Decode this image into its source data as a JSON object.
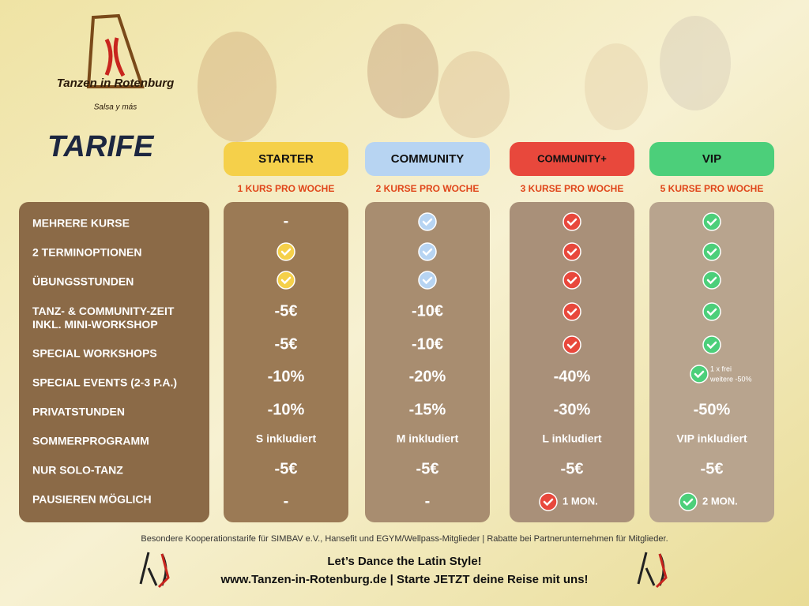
{
  "logo": {
    "name": "Tanzen in Rotenburg",
    "tagline": "Salsa y más"
  },
  "title": "TARIFE",
  "rows": [
    "MEHRERE KURSE",
    "2 TERMINOPTIONEN",
    "ÜBUNGSSTUNDEN",
    "TANZ- & COMMUNITY-ZEIT INKL. MINI-WORKSHOP",
    "SPECIAL WORKSHOPS",
    "SPECIAL EVENTS (2-3 P.A.)",
    "PRIVATSTUNDEN",
    "SOMMERPROGRAMM",
    "NUR SOLO-TANZ",
    "PAUSIEREN MÖGLICH"
  ],
  "plans": [
    {
      "name": "STARTER",
      "subtitle": "1 KURS PRO WOCHE",
      "color": "#f5d04a",
      "cells": [
        "-",
        true,
        true,
        "-5€",
        "-5€",
        "-10%",
        "-10%",
        "S inkludiert",
        "-5€",
        "-"
      ]
    },
    {
      "name": "COMMUNITY",
      "subtitle": "2 KURSE PRO WOCHE",
      "color": "#b7d4f2",
      "cells": [
        true,
        true,
        true,
        "-10€",
        "-10€",
        "-20%",
        "-15%",
        "M inkludiert",
        "-5€",
        "-"
      ]
    },
    {
      "name": "COMMUNITY+",
      "subtitle": "3 KURSE PRO WOCHE",
      "color": "#e8483c",
      "cells": [
        true,
        true,
        true,
        true,
        true,
        "-40%",
        "-30%",
        "L inkludiert",
        "-5€",
        {
          "check": true,
          "text": "1 MON."
        }
      ]
    },
    {
      "name": "VIP",
      "subtitle": "5 KURSE PRO WOCHE",
      "color": "#4ccf7a",
      "cells": [
        true,
        true,
        true,
        true,
        true,
        {
          "check": true,
          "lines": [
            "1 x frei",
            "weitere -50%"
          ]
        },
        "-50%",
        "VIP inkludiert",
        "-5€",
        {
          "check": true,
          "text": "2 MON."
        }
      ]
    }
  ],
  "footer": {
    "note": "Besondere Kooperationstarife für SIMBAV e.V., Hansefit und EGYM/Wellpass-Mitglieder | Rabatte bei Partnerunternehmen für Mitglieder.",
    "slogan": "Let’s Dance the Latin Style!",
    "url_line": "www.Tanzen-in-Rotenburg.de | Starte JETZT deine Reise mit uns!"
  }
}
